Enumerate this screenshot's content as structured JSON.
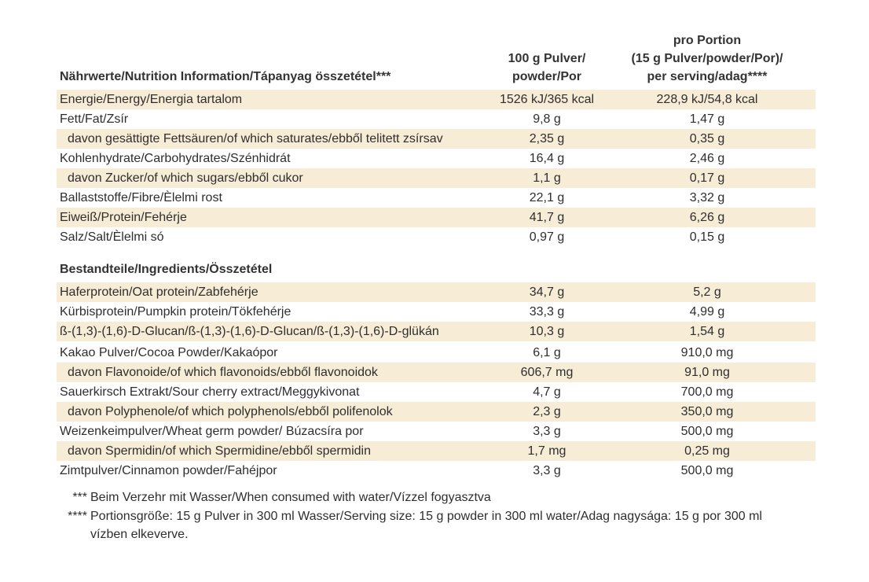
{
  "header": {
    "label": "Nährwerte/Nutrition Information/Tápanyag összetétel***",
    "col1": [
      "100 g Pulver/",
      "powder/Por"
    ],
    "col2": [
      "pro Portion",
      "(15 g Pulver/powder/Por)/",
      "per serving/adag****"
    ]
  },
  "nutrition": [
    {
      "label": "Energie/Energy/Energia tartalom",
      "v1": "1526 kJ/365 kcal",
      "v2": "228,9 kJ/54,8 kcal"
    },
    {
      "label": "Fett/Fat/Zsír",
      "v1": "9,8 g",
      "v2": "1,47 g"
    },
    {
      "label": "davon gesättigte Fettsäuren/of which saturates/ebből telitett zsírsav",
      "v1": "2,35 g",
      "v2": "0,35 g"
    },
    {
      "label": "Kohlenhydrate/Carbohydrates/Szénhidrát",
      "v1": "16,4 g",
      "v2": "2,46 g"
    },
    {
      "label": "davon Zucker/of which sugars/ebből cukor",
      "v1": "1,1 g",
      "v2": "0,17 g"
    },
    {
      "label": "Ballaststoffe/Fibre/Èlelmi rost",
      "v1": "22,1 g",
      "v2": "3,32 g"
    },
    {
      "label": "Eiweiß/Protein/Fehérje",
      "v1": "41,7 g",
      "v2": "6,26 g"
    },
    {
      "label": "Salz/Salt/Èlelmi só",
      "v1": "0,97 g",
      "v2": "0,15 g"
    }
  ],
  "ingredients_title": "Bestandteile/Ingredients/Összetétel",
  "ingredients": [
    {
      "label": "Haferprotein/Oat protein/Zabfehérje",
      "v1": "34,7 g",
      "v2": "5,2 g"
    },
    {
      "label": "Kürbisprotein/Pumpkin protein/Tökfehérje",
      "v1": "33,3 g",
      "v2": "4,99 g"
    },
    {
      "label": "ß-(1,3)-(1,6)-D-Glucan/ß-(1,3)-(1,6)-D-Glucan/ß-(1,3)-(1,6)-D-glükán",
      "v1": "10,3 g",
      "v2": "1,54 g"
    },
    {
      "label": "Kakao Pulver/Cocoa Powder/Kakaópor",
      "v1": "6,1 g",
      "v2": "910,0 mg"
    },
    {
      "label": "davon Flavonoide/of which flavonoids/ebből flavonoidok",
      "v1": "606,7 mg",
      "v2": "91,0 mg"
    },
    {
      "label": "Sauerkirsch Extrakt/Sour cherry extract/Meggykivonat",
      "v1": "4,7 g",
      "v2": "700,0 mg"
    },
    {
      "label": "davon Polyphenole/of which polyphenols/ebből polifenolok",
      "v1": "2,3 g",
      "v2": "350,0 mg"
    },
    {
      "label": "Weizenkeimpulver/Wheat germ powder/ Búzacsíra por",
      "v1": "3,3 g",
      "v2": "500,0 mg"
    },
    {
      "label": "davon Spermidin/of which Spermidine/ebből spermidin",
      "v1": "1,7 mg",
      "v2": "0,25 mg"
    },
    {
      "label": "Zimtpulver/Cinnamon powder/Fahéjpor",
      "v1": "3,3 g",
      "v2": "500,0 mg"
    }
  ],
  "footnotes": [
    {
      "mark": "***",
      "text": "Beim Verzehr mit Wasser/When consumed with water/Vízzel fogyasztva"
    },
    {
      "mark": "****",
      "text": "Portionsgröße: 15 g Pulver in 300 ml Wasser/Serving size: 15 g powder in 300 ml water/Adag nagysága: 15 g por 300 ml vízben elkeverve."
    }
  ],
  "colors": {
    "row_shade": "#f7ecd6",
    "text": "#2e2e2e"
  }
}
